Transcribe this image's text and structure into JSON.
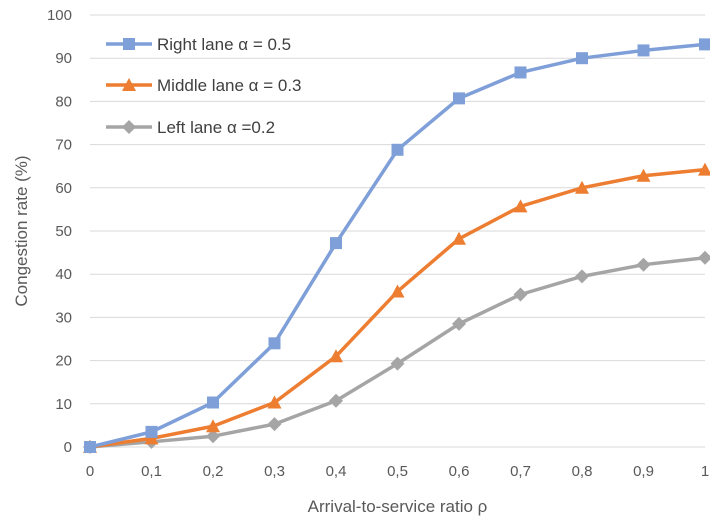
{
  "chart_data": {
    "type": "line",
    "xlabel": "Arrival-to-service ratio ρ",
    "ylabel": "Congestion rate (%)",
    "x": [
      0,
      0.1,
      0.2,
      0.3,
      0.4,
      0.5,
      0.6,
      0.7,
      0.8,
      0.9,
      1
    ],
    "x_tick_labels": [
      "0",
      "0,1",
      "0,2",
      "0,3",
      "0,4",
      "0,5",
      "0,6",
      "0,7",
      "0,8",
      "0,9",
      "1"
    ],
    "xlim": [
      0,
      1
    ],
    "ylim": [
      0,
      100
    ],
    "y_ticks": [
      0,
      10,
      20,
      30,
      40,
      50,
      60,
      70,
      80,
      90,
      100
    ],
    "grid": true,
    "legend_position": "top-left",
    "series": [
      {
        "name": "Right lane α = 0.5",
        "color": "#7f9fd8",
        "marker": "square",
        "values": [
          0,
          3.5,
          10.3,
          24,
          47.2,
          68.8,
          80.7,
          86.7,
          90,
          91.8,
          93.2
        ]
      },
      {
        "name": "Middle lane α = 0.3",
        "color": "#ed7d31",
        "marker": "triangle",
        "values": [
          0,
          2,
          4.8,
          10.3,
          21,
          36,
          48.2,
          55.7,
          60,
          62.8,
          64.2
        ]
      },
      {
        "name": "Left lane α =0.2",
        "color": "#a5a5a5",
        "marker": "diamond",
        "values": [
          0,
          1.2,
          2.5,
          5.3,
          10.7,
          19.3,
          28.5,
          35.3,
          39.5,
          42.2,
          43.8
        ]
      }
    ]
  }
}
